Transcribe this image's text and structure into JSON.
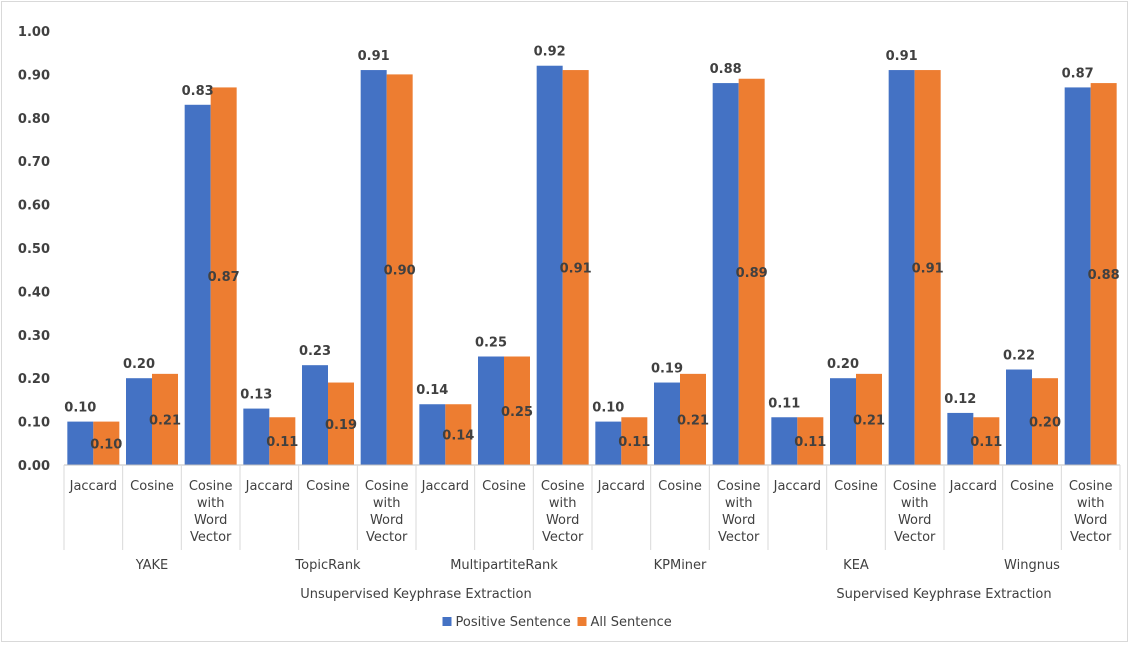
{
  "chart_data": {
    "type": "bar",
    "ylim": [
      0,
      1
    ],
    "y_ticks": [
      "0.00",
      "0.10",
      "0.20",
      "0.30",
      "0.40",
      "0.50",
      "0.60",
      "0.70",
      "0.80",
      "0.90",
      "1.00"
    ],
    "category_labels": [
      [
        "Jaccard"
      ],
      [
        "Cosine"
      ],
      [
        "Cosine",
        "with",
        "Word",
        "Vector"
      ],
      [
        "Jaccard"
      ],
      [
        "Cosine"
      ],
      [
        "Cosine",
        "with",
        "Word",
        "Vector"
      ],
      [
        "Jaccard"
      ],
      [
        "Cosine"
      ],
      [
        "Cosine",
        "with",
        "Word",
        "Vector"
      ],
      [
        "Jaccard"
      ],
      [
        "Cosine"
      ],
      [
        "Cosine",
        "with",
        "Word",
        "Vector"
      ],
      [
        "Jaccard"
      ],
      [
        "Cosine"
      ],
      [
        "Cosine",
        "with",
        "Word",
        "Vector"
      ],
      [
        "Jaccard"
      ],
      [
        "Cosine"
      ],
      [
        "Cosine",
        "with",
        "Word",
        "Vector"
      ]
    ],
    "methods": [
      "YAKE",
      "TopicRank",
      "MultipartiteRank",
      "KPMiner",
      "KEA",
      "Wingnus"
    ],
    "groups": [
      {
        "label": "Unsupervised Keyphrase Extraction",
        "methods": 4
      },
      {
        "label": "Supervised Keyphrase Extraction",
        "methods": 2
      }
    ],
    "series": [
      {
        "name": "Positive Sentence",
        "color": "#4472C4",
        "values": [
          0.1,
          0.2,
          0.83,
          0.13,
          0.23,
          0.91,
          0.14,
          0.25,
          0.92,
          0.1,
          0.19,
          0.88,
          0.11,
          0.2,
          0.91,
          0.12,
          0.22,
          0.87
        ],
        "labels": [
          "0.10",
          "0.20",
          "0.83",
          "0.13",
          "0.23",
          "0.91",
          "0.14",
          "0.25",
          "0.92",
          "0.10",
          "0.19",
          "0.88",
          "0.11",
          "0.20",
          "0.91",
          "0.12",
          "0.22",
          "0.87"
        ]
      },
      {
        "name": "All Sentence",
        "color": "#ED7D31",
        "values": [
          0.1,
          0.21,
          0.87,
          0.11,
          0.19,
          0.9,
          0.14,
          0.25,
          0.91,
          0.11,
          0.21,
          0.89,
          0.11,
          0.21,
          0.91,
          0.11,
          0.2,
          0.88
        ],
        "labels": [
          "0.10",
          "0.21",
          "0.87",
          "0.11",
          "0.19",
          "0.90",
          "0.14",
          "0.25",
          "0.91",
          "0.11",
          "0.21",
          "0.89",
          "0.11",
          "0.21",
          "0.91",
          "0.11",
          "0.20",
          "0.88"
        ]
      }
    ],
    "legend_position": "bottom",
    "grid": false
  }
}
